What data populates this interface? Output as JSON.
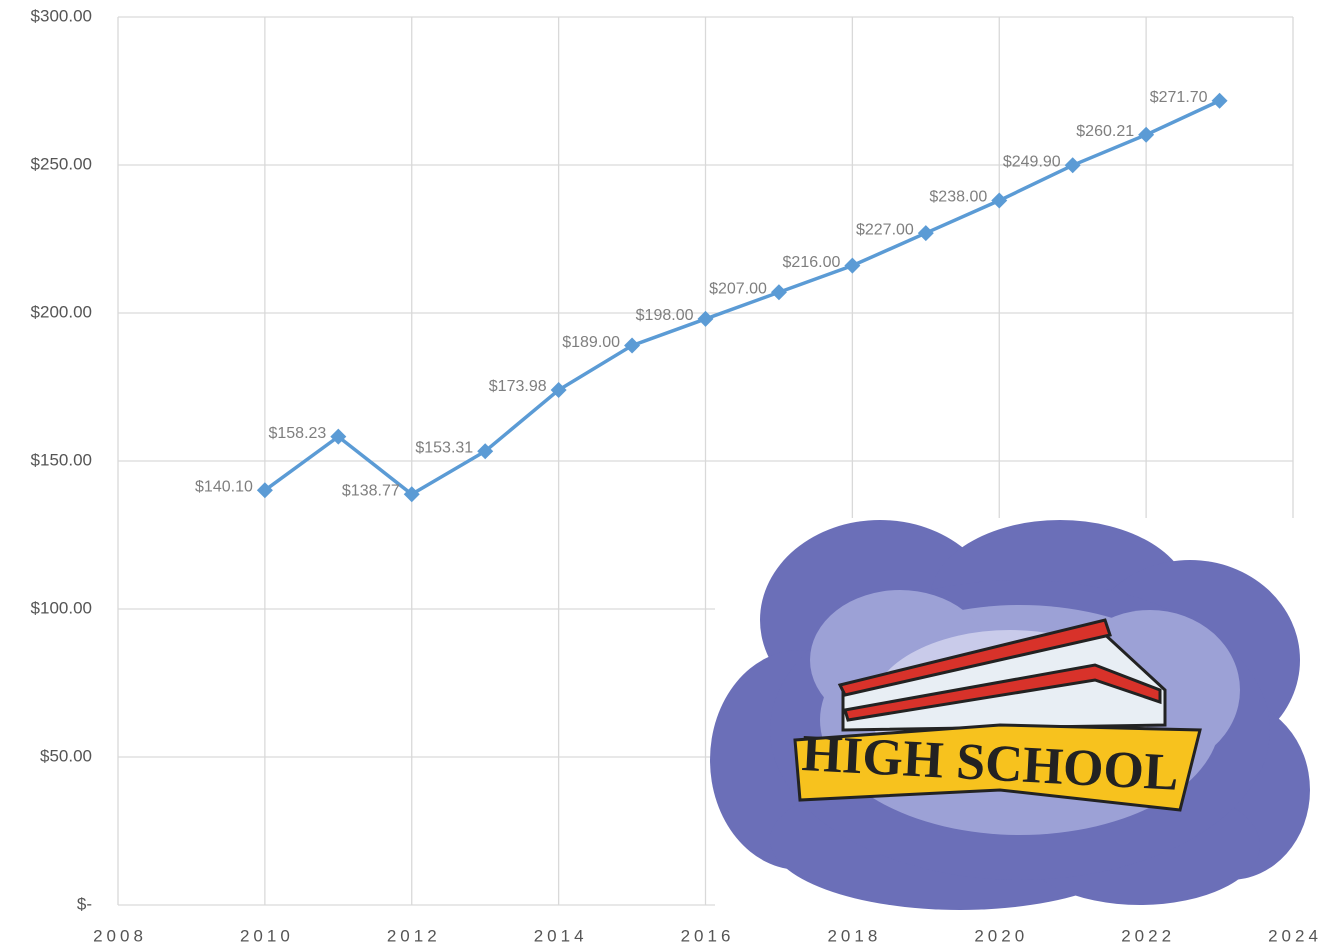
{
  "chart_data": {
    "type": "line",
    "x": [
      2010,
      2011,
      2012,
      2013,
      2014,
      2015,
      2016,
      2017,
      2018,
      2019,
      2020,
      2021,
      2022,
      2023
    ],
    "values": [
      140.1,
      158.23,
      138.77,
      153.31,
      173.98,
      189.0,
      198.0,
      207.0,
      216.0,
      227.0,
      238.0,
      249.9,
      260.21,
      271.7
    ],
    "value_labels": [
      "$140.10",
      "$158.23",
      "$138.77",
      "$153.31",
      "$173.98",
      "$189.00",
      "$198.00",
      "$207.00",
      "$216.00",
      "$227.00",
      "$238.00",
      "$249.90",
      "$260.21",
      "$271.70"
    ],
    "color": "#5b9bd5",
    "xlim": [
      2008,
      2024
    ],
    "xticks": [
      2008,
      2010,
      2012,
      2014,
      2016,
      2018,
      2020,
      2022,
      2024
    ],
    "ylim": [
      0,
      300
    ],
    "yticks": [
      {
        "value": 0,
        "label": "$-"
      },
      {
        "value": 50,
        "label": "$50.00"
      },
      {
        "value": 100,
        "label": "$100.00"
      },
      {
        "value": 150,
        "label": "$150.00"
      },
      {
        "value": 200,
        "label": "$200.00"
      },
      {
        "value": 250,
        "label": "$250.00"
      },
      {
        "value": 300,
        "label": "$300.00"
      }
    ],
    "grid": true,
    "annotation": "HIGH SCHOOL"
  }
}
